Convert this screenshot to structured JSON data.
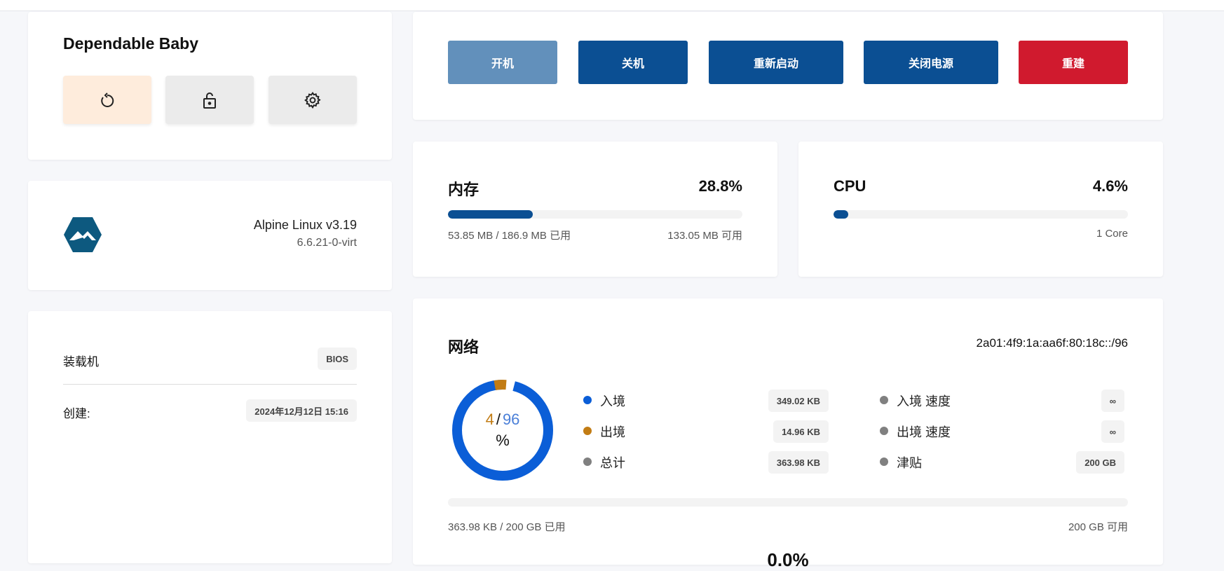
{
  "vm": {
    "name": "Dependable Baby",
    "actions": [
      {
        "icon": "restart-icon"
      },
      {
        "icon": "unlock-icon"
      },
      {
        "icon": "gear-icon"
      }
    ]
  },
  "os": {
    "name": "Alpine Linux v3.19",
    "kernel": "6.6.21-0-virt",
    "logo": "alpine-linux-logo"
  },
  "info": {
    "loader_label": "装载机",
    "loader_value": "BIOS",
    "created_label": "创建:",
    "created_value": "2024年12月12日 15:16"
  },
  "power": {
    "buttons": [
      "开机",
      "关机",
      "重新启动",
      "关闭电源",
      "重建"
    ],
    "colors": {
      "start": "#6290bb",
      "primary": "#0b4f93",
      "danger": "#d01a2e"
    }
  },
  "memory": {
    "title": "内存",
    "percent": "28.8%",
    "fraction": 0.288,
    "used": "53.85 MB / 186.9 MB 已用",
    "free": "133.05 MB 可用"
  },
  "cpu": {
    "title": "CPU",
    "percent": "4.6%",
    "fraction": 0.046,
    "cores": "1 Core"
  },
  "network": {
    "title": "网络",
    "ip": "2a01:4f9:1a:aa6f:80:18c::/96",
    "donut": {
      "out": "4",
      "sep": "/",
      "in": "96",
      "unit": "%",
      "in_fraction": 0.96,
      "out_fraction": 0.04,
      "in_color": "#0b5ed7",
      "out_color": "#c27c14"
    },
    "legend": [
      {
        "label": "入境",
        "value": "349.02 KB",
        "color": "#0b5ed7"
      },
      {
        "label": "出境",
        "value": "14.96 KB",
        "color": "#c27c14"
      },
      {
        "label": "总计",
        "value": "363.98 KB",
        "color": "#808080"
      }
    ],
    "legend2": [
      {
        "label": "入境 速度",
        "value": "∞"
      },
      {
        "label": "出境 速度",
        "value": "∞"
      },
      {
        "label": "津贴",
        "value": "200 GB"
      }
    ],
    "usage_fraction": 0.0,
    "used": "363.98 KB / 200 GB 已用",
    "free": "200 GB 可用",
    "percent": "0.0%"
  }
}
